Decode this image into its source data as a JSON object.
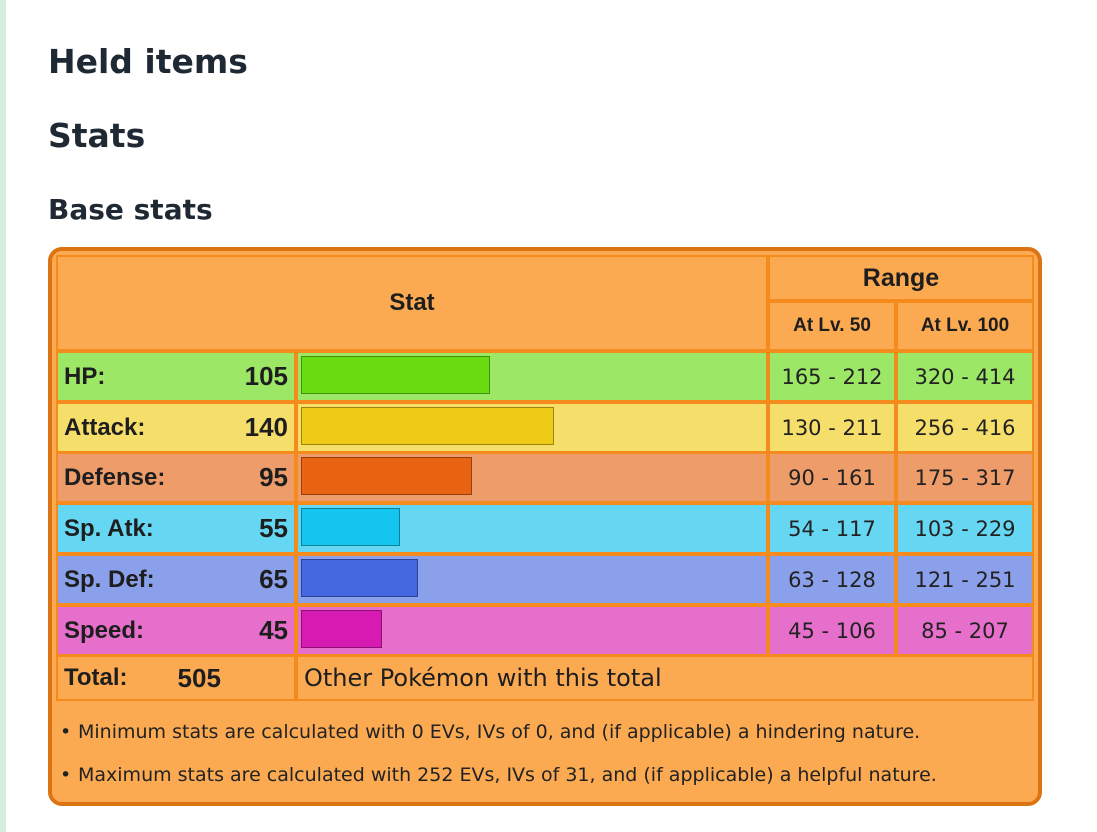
{
  "headings": {
    "held_items": "Held items",
    "stats": "Stats",
    "base_stats": "Base stats"
  },
  "table": {
    "stat_header": "Stat",
    "range_header": "Range",
    "lv50_header": "At Lv. 50",
    "lv100_header": "At Lv. 100",
    "max_base": 255,
    "rows": [
      {
        "label": "HP:",
        "value": "105",
        "base": 105,
        "lv50": "165 - 212",
        "lv100": "320 - 414",
        "row_color": "#9de766",
        "bar_color": "#69dd12"
      },
      {
        "label": "Attack:",
        "value": "140",
        "base": 140,
        "lv50": "130 - 211",
        "lv100": "256 - 416",
        "row_color": "#f6de6a",
        "bar_color": "#efcb17"
      },
      {
        "label": "Defense:",
        "value": "95",
        "base": 95,
        "lv50": "90 - 161",
        "lv100": "175 - 317",
        "row_color": "#ee9c69",
        "bar_color": "#e86413"
      },
      {
        "label": "Sp. Atk:",
        "value": "55",
        "base": 55,
        "lv50": "54 - 117",
        "lv100": "103 - 229",
        "row_color": "#66d7f3",
        "bar_color": "#13c5ef"
      },
      {
        "label": "Sp. Def:",
        "value": "65",
        "base": 65,
        "lv50": "63 - 128",
        "lv100": "121 - 251",
        "row_color": "#8ba0ea",
        "bar_color": "#4568e1"
      },
      {
        "label": "Speed:",
        "value": "45",
        "base": 45,
        "lv50": "45 - 106",
        "lv100": "85 - 207",
        "row_color": "#e66fcc",
        "bar_color": "#d71bb2"
      }
    ],
    "total_label": "Total:",
    "total_value": "505",
    "other_link": "Other Pokémon with this total"
  },
  "notes": [
    "Minimum stats are calculated with 0 EVs, IVs of 0, and (if applicable) a hindering nature.",
    "Maximum stats are calculated with 252 EVs, IVs of 31, and (if applicable) a helpful nature."
  ],
  "colors": {
    "box_bg": "#fbaa52",
    "box_border": "#dc7413",
    "cell_border": "#f58b1d"
  }
}
